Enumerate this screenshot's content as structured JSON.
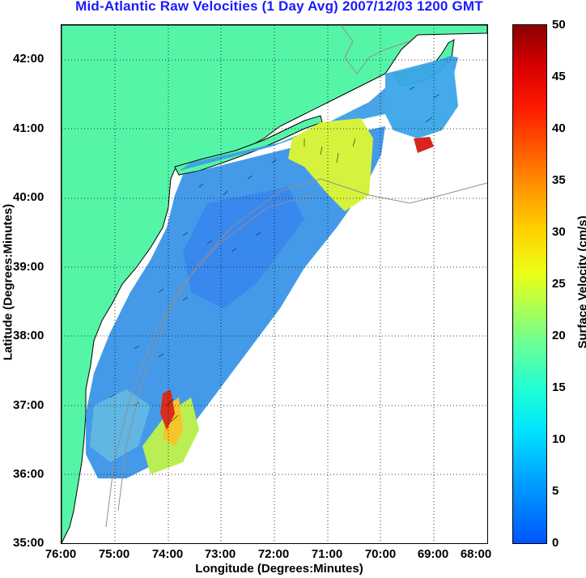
{
  "title": "Mid-Atlantic Raw Velocities (1 Day Avg) 2007/12/03 1200 GMT",
  "axes": {
    "xlabel": "Longitude (Degrees:Minutes)",
    "ylabel": "Latitude (Degrees:Minutes)",
    "xticks": [
      "76:00",
      "75:00",
      "74:00",
      "73:00",
      "72:00",
      "71:00",
      "70:00",
      "69:00",
      "68:00"
    ],
    "yticks": [
      "35:00",
      "36:00",
      "37:00",
      "38:00",
      "39:00",
      "40:00",
      "41:00",
      "42:00"
    ]
  },
  "colorbar": {
    "label": "Surface Velocity (cm/s)",
    "ticks": [
      "0",
      "5",
      "10",
      "15",
      "20",
      "25",
      "30",
      "35",
      "40",
      "45",
      "50"
    ],
    "range": [
      0,
      50
    ]
  },
  "colors": {
    "land": "#55f5a8",
    "grid": "#000000",
    "title": "#1a1aff",
    "coastline": "#000000",
    "bathymetry": "#909090"
  },
  "map_extent": {
    "lon": [
      -76,
      -68
    ],
    "lat": [
      35,
      42.5
    ]
  },
  "grid": true
}
